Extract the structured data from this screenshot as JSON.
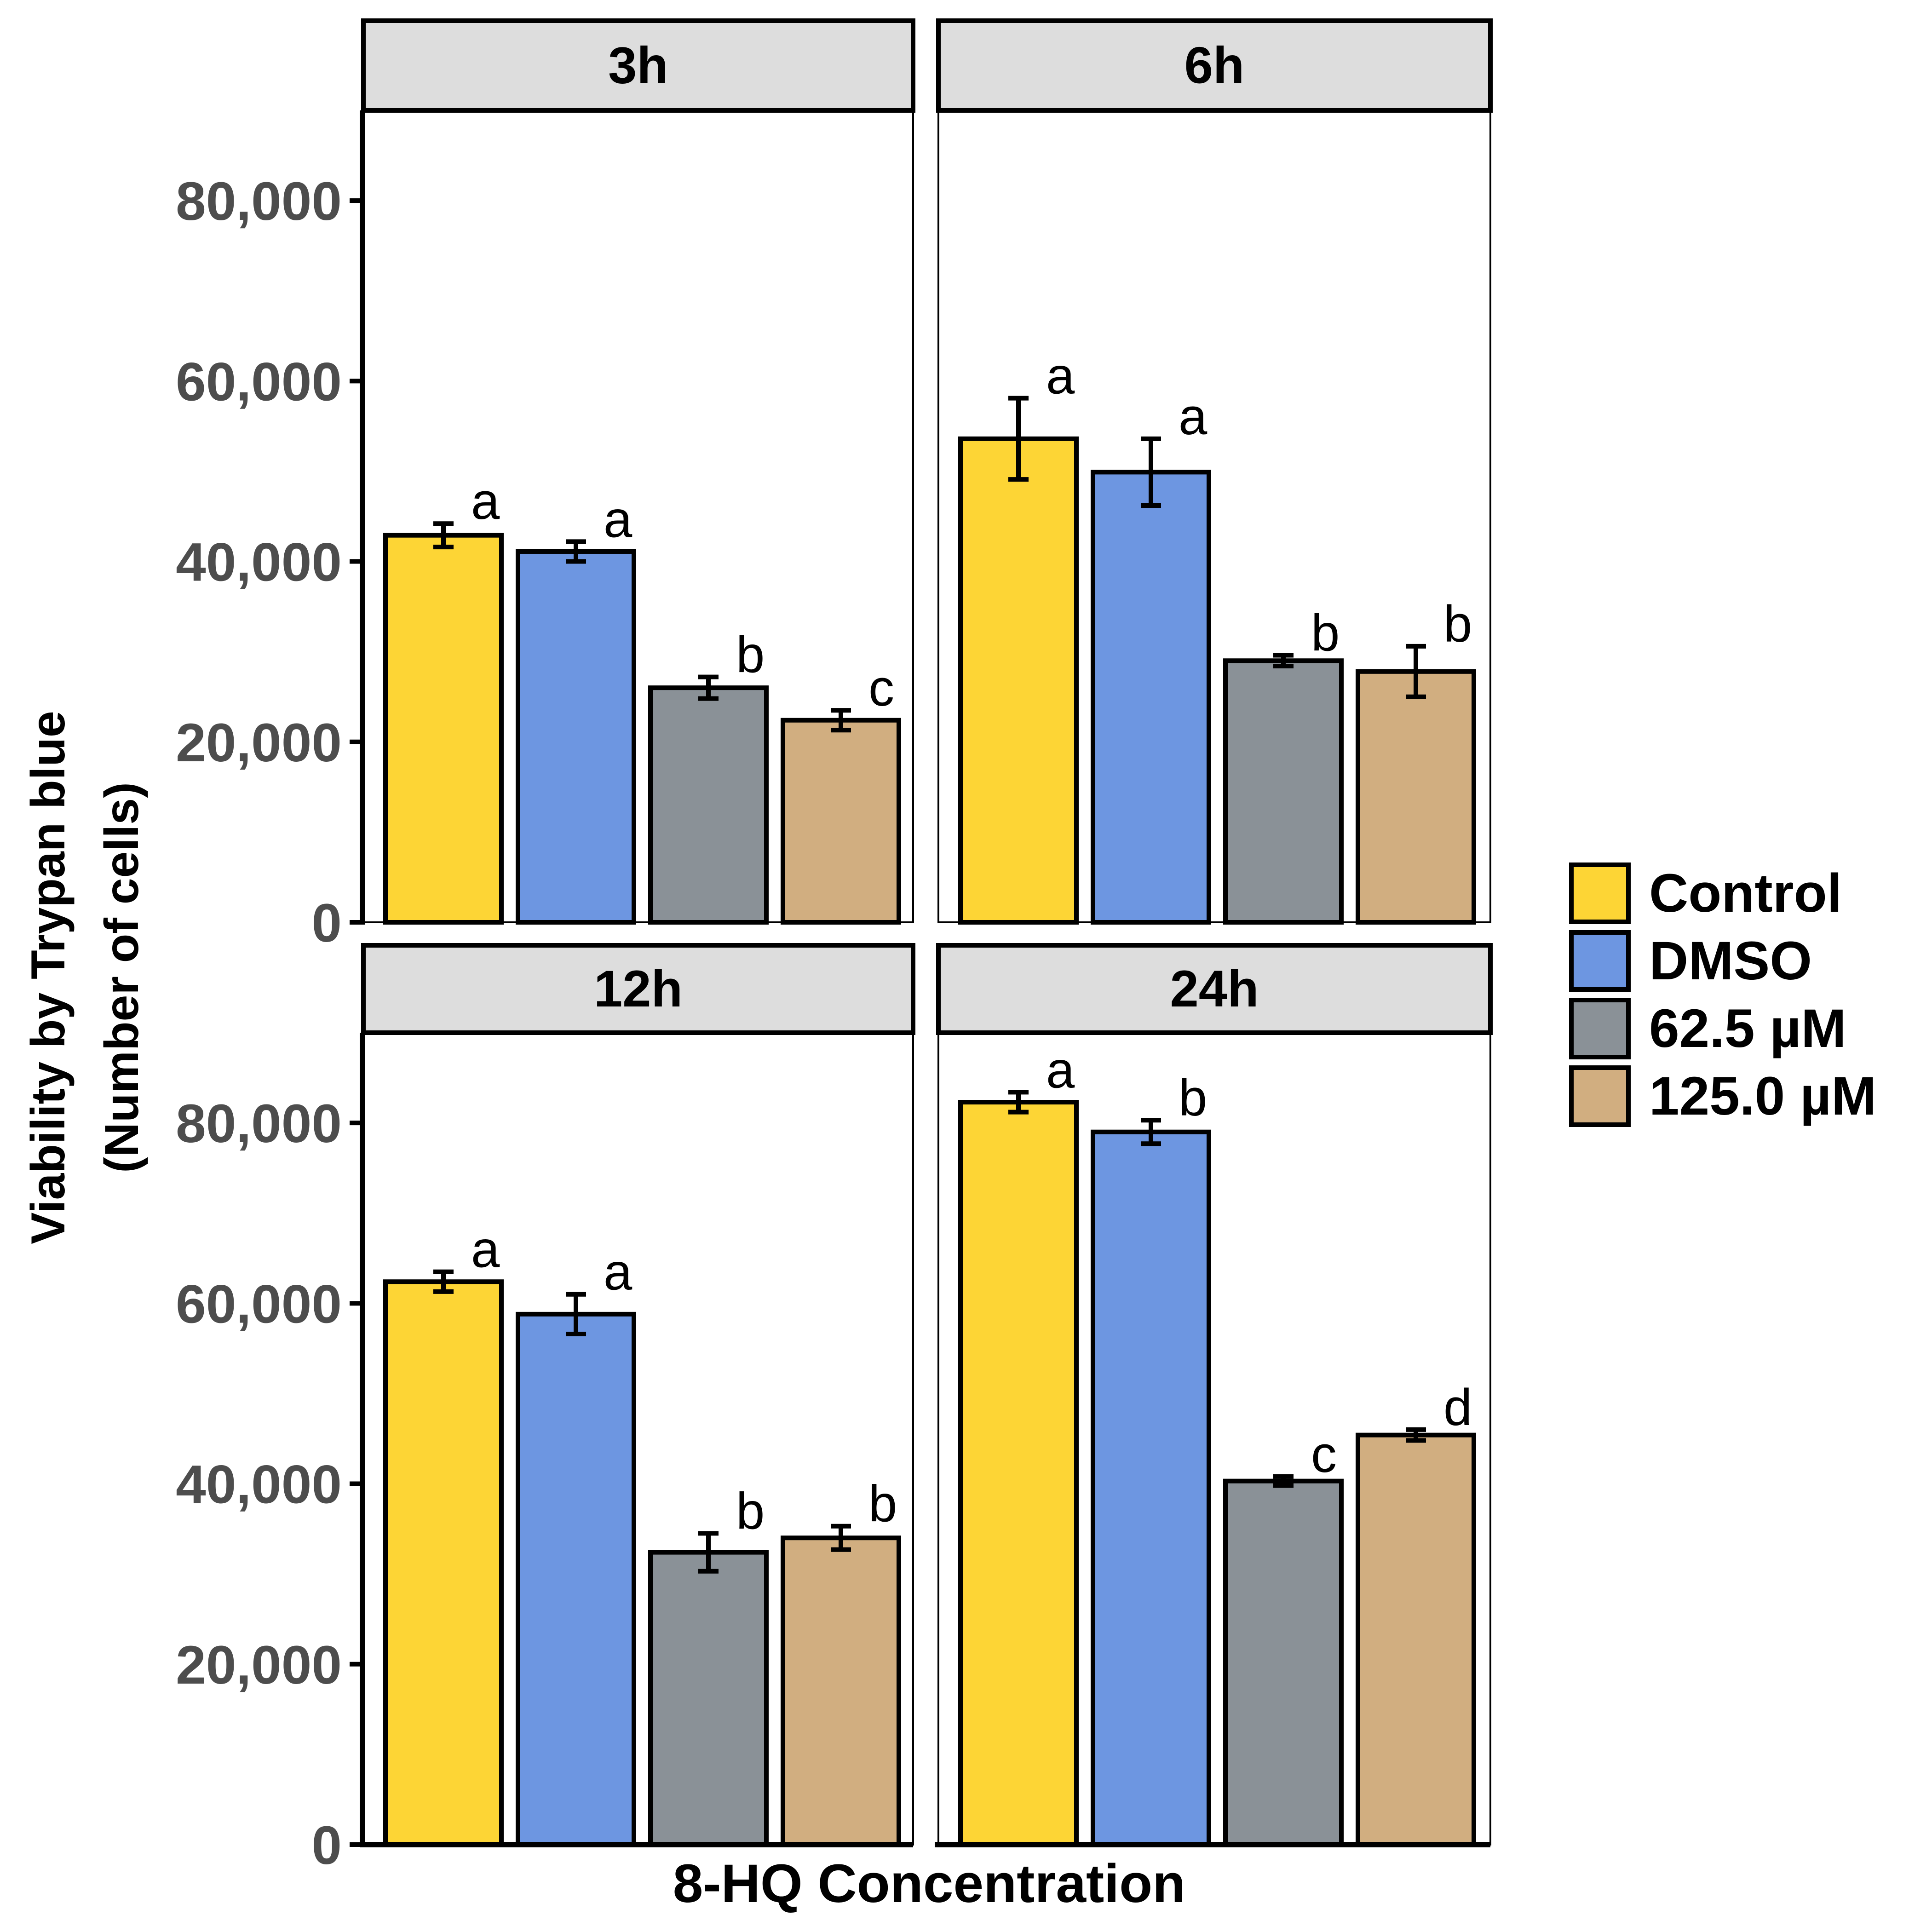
{
  "chart_data": {
    "type": "bar",
    "ylabel_lines": [
      "Viability by Trypan blue",
      "(Number of cells)"
    ],
    "xlabel": "8-HQ Concentration",
    "ylim": [
      0,
      90000
    ],
    "yticks": [
      0,
      20000,
      40000,
      60000,
      80000
    ],
    "ytick_labels": [
      "0",
      "20,000",
      "40,000",
      "60,000",
      "80,000"
    ],
    "categories": [
      "Control",
      "DMSO",
      "62.5 µM",
      "125.0 µM"
    ],
    "colors": [
      "#FDD535",
      "#6D96E1",
      "#8A9197",
      "#D1AE80"
    ],
    "legend_position": "right",
    "panels": [
      {
        "label": "3h",
        "values": [
          42900,
          41100,
          26000,
          22400
        ],
        "errors": [
          1300,
          1100,
          1200,
          1100
        ],
        "letters": [
          "a",
          "a",
          "b",
          "c"
        ]
      },
      {
        "label": "6h",
        "values": [
          53600,
          49900,
          29000,
          27800
        ],
        "errors": [
          4500,
          3700,
          600,
          2800
        ],
        "letters": [
          "a",
          "a",
          "b",
          "b"
        ]
      },
      {
        "label": "12h",
        "values": [
          62400,
          58800,
          32400,
          34000
        ],
        "errors": [
          1100,
          2200,
          2100,
          1300
        ],
        "letters": [
          "a",
          "a",
          "b",
          "b"
        ]
      },
      {
        "label": "24h",
        "values": [
          82300,
          79000,
          40300,
          45400
        ],
        "errors": [
          1100,
          1300,
          500,
          600
        ],
        "letters": [
          "a",
          "b",
          "c",
          "d"
        ]
      }
    ]
  }
}
